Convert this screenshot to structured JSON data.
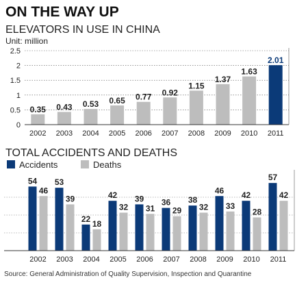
{
  "header": {
    "title": "ON THE WAY UP"
  },
  "chart_data": [
    {
      "type": "bar",
      "title": "ELEVATORS IN USE IN CHINA",
      "unit": "Unit: million",
      "categories": [
        "2002",
        "2003",
        "2004",
        "2005",
        "2006",
        "2007",
        "2008",
        "2009",
        "2010",
        "2011"
      ],
      "values": [
        0.35,
        0.43,
        0.53,
        0.65,
        0.77,
        0.92,
        1.15,
        1.37,
        1.63,
        2.01
      ],
      "value_labels": [
        "0.35",
        "0.43",
        "0.53",
        "0.65",
        "0.77",
        "0.92",
        "1.15",
        "1.37",
        "1.63",
        "2.01"
      ],
      "highlight_index": 9,
      "ylim": [
        0,
        2.5
      ],
      "yticks": [
        "2.5",
        "2",
        "1.5",
        "1",
        "0.5",
        "0"
      ],
      "grid": true,
      "colors": {
        "bar": "#bdbdbd",
        "highlight": "#0b3a78"
      }
    },
    {
      "type": "bar",
      "title": "TOTAL ACCIDENTS AND DEATHS",
      "categories": [
        "2002",
        "2003",
        "2004",
        "2005",
        "2006",
        "2007",
        "2008",
        "2009",
        "2010",
        "2011"
      ],
      "series": [
        {
          "name": "Accidents",
          "values": [
            54,
            53,
            22,
            42,
            39,
            36,
            38,
            46,
            42,
            57
          ],
          "color": "#0b3a78"
        },
        {
          "name": "Deaths",
          "values": [
            46,
            39,
            18,
            32,
            31,
            29,
            32,
            33,
            28,
            42
          ],
          "color": "#bdbdbd"
        }
      ],
      "ylim": [
        0,
        60
      ],
      "legend": "top-left"
    }
  ],
  "source": "Source: General Administration of Quality Supervision, Inspection and Quarantine"
}
